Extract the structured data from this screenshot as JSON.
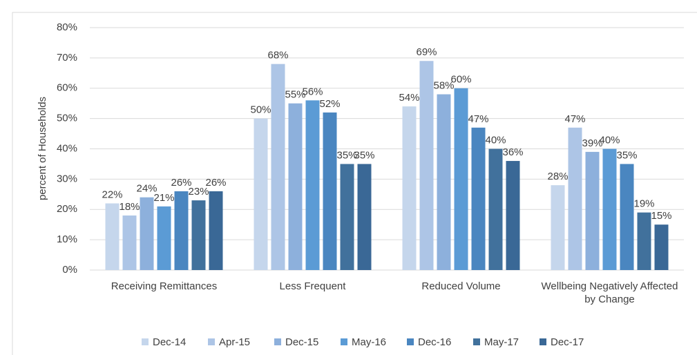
{
  "chart_data": {
    "type": "bar",
    "y_label": "percent of Households",
    "categories": [
      "Receiving Remittances",
      "Less Frequent",
      "Reduced Volume",
      "Wellbeing Negatively Affected by Change"
    ],
    "series": [
      {
        "name": "Dec-14",
        "color": "#c5d6ec",
        "values": [
          22,
          50,
          54,
          28
        ],
        "value_labels": [
          "22%",
          "50%",
          "54%",
          "28%"
        ]
      },
      {
        "name": "Apr-15",
        "color": "#adc5e6",
        "values": [
          18,
          68,
          69,
          47
        ],
        "value_labels": [
          "18%",
          "68%",
          "69%",
          "47%"
        ]
      },
      {
        "name": "Dec-15",
        "color": "#8db0dc",
        "values": [
          24,
          55,
          58,
          39
        ],
        "value_labels": [
          "24%",
          "55%",
          "58%",
          "39%"
        ]
      },
      {
        "name": "May-16",
        "color": "#5b9bd5",
        "values": [
          21,
          56,
          60,
          40
        ],
        "value_labels": [
          "21%",
          "56%",
          "60%",
          "40%"
        ]
      },
      {
        "name": "Dec-16",
        "color": "#4a86c0",
        "values": [
          26,
          52,
          47,
          35
        ],
        "value_labels": [
          "26%",
          "52%",
          "47%",
          "35%"
        ]
      },
      {
        "name": "May-17",
        "color": "#41719c",
        "values": [
          23,
          35,
          40,
          19
        ],
        "value_labels": [
          "23%",
          "35%",
          "40%",
          "19%"
        ]
      },
      {
        "name": "Dec-17",
        "color": "#3a6896",
        "values": [
          26,
          35,
          36,
          15
        ],
        "value_labels": [
          "26%",
          "35%",
          "36%",
          "15%"
        ]
      }
    ],
    "ylim": [
      0,
      80
    ],
    "yticks": [
      {
        "value": 0,
        "label": "0%"
      },
      {
        "value": 10,
        "label": "10%"
      },
      {
        "value": 20,
        "label": "20%"
      },
      {
        "value": 30,
        "label": "30%"
      },
      {
        "value": 40,
        "label": "40%"
      },
      {
        "value": 50,
        "label": "50%"
      },
      {
        "value": 60,
        "label": "60%"
      },
      {
        "value": 70,
        "label": "70%"
      },
      {
        "value": 80,
        "label": "80%"
      }
    ],
    "grid": true,
    "legend": "bottom"
  }
}
